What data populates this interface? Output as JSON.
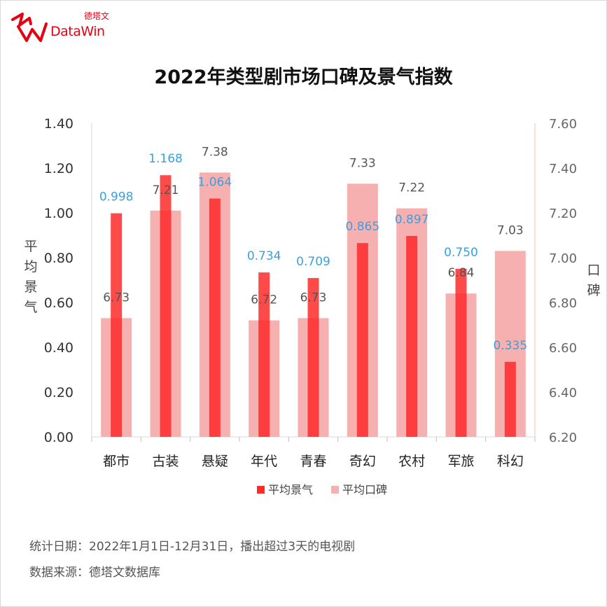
{
  "logo": {
    "cn": "德塔文",
    "en": "DataWin"
  },
  "title": "2022年类型剧市场口碑及景气指数",
  "footer": {
    "line1": "统计日期：2022年1月1日-12月31日，播出超过3天的电视剧",
    "line2": "数据来源：德塔文数据库"
  },
  "colors": {
    "bar_primary": "#ff2a2a",
    "bar_secondary": "#f7b0b0",
    "label_primary": "#3aa0e0",
    "label_secondary": "#555555"
  },
  "chart_data": {
    "type": "bar",
    "categories": [
      "都市",
      "古装",
      "悬疑",
      "年代",
      "青春",
      "奇幻",
      "农村",
      "军旅",
      "科幻"
    ],
    "series": [
      {
        "name": "平均景气",
        "axis": "left",
        "values": [
          0.998,
          1.168,
          1.064,
          0.734,
          0.709,
          0.865,
          0.897,
          0.75,
          0.335
        ],
        "labels": [
          "0.998",
          "1.168",
          "1.064",
          "0.734",
          "0.709",
          "0.865",
          "0.897",
          "0.750",
          "0.335"
        ]
      },
      {
        "name": "平均口碑",
        "axis": "right",
        "values": [
          6.73,
          7.21,
          7.38,
          6.72,
          6.73,
          7.33,
          7.22,
          6.84,
          7.03
        ],
        "labels": [
          "6.73",
          "7.21",
          "7.38",
          "6.72",
          "6.73",
          "7.33",
          "7.22",
          "6.84",
          "7.03"
        ]
      }
    ],
    "ylabel_left": "平均景气",
    "ylabel_right": "口碑",
    "ylim_left": [
      0,
      1.4
    ],
    "ylim_right": [
      6.2,
      7.6
    ],
    "yticks_left": [
      "0.00",
      "0.20",
      "0.40",
      "0.60",
      "0.80",
      "1.00",
      "1.20",
      "1.40"
    ],
    "yticks_right": [
      "6.20",
      "6.40",
      "6.60",
      "6.80",
      "7.00",
      "7.20",
      "7.40",
      "7.60"
    ],
    "legend_position": "bottom",
    "grid": false
  }
}
